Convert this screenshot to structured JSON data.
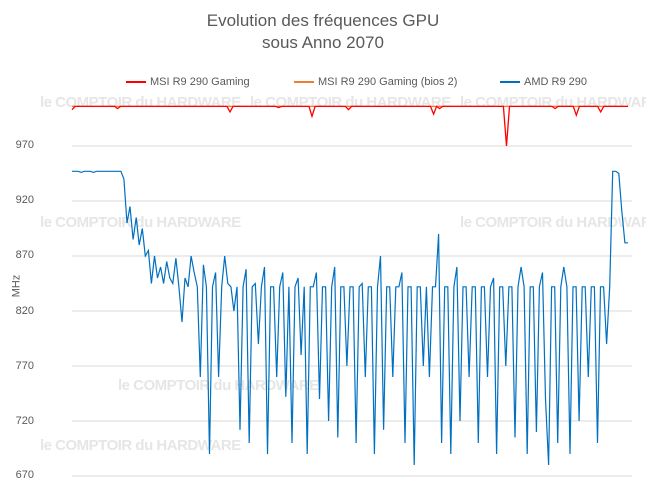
{
  "chart_data": {
    "type": "line",
    "title": "Evolution des fréquences GPU",
    "subtitle": "sous Anno 2070",
    "xlabel": "",
    "ylabel": "MHz",
    "ylim": [
      670,
      1020
    ],
    "yticks": [
      "970",
      "920",
      "870",
      "820",
      "770",
      "720",
      "670"
    ],
    "grid": true,
    "legend_position": "top",
    "watermark": "le COMPTOIR du HARDWARE",
    "series": [
      {
        "name": "MSI R9 290 Gaming",
        "color": "#ff0000",
        "values": [
          1003,
          1006,
          1006,
          1006,
          1006,
          1006,
          1006,
          1006,
          1006,
          1006,
          1006,
          1006,
          1006,
          1006,
          1006,
          1004,
          1006,
          1006,
          1006,
          1006,
          1006,
          1006,
          1006,
          1006,
          1006,
          1006,
          1006,
          1006,
          1006,
          1006,
          1006,
          1006,
          1006,
          1006,
          1006,
          1006,
          1006,
          1006,
          1006,
          1006,
          1006,
          1006,
          1006,
          1006,
          1006,
          1006,
          1006,
          1006,
          1006,
          1006,
          1006,
          1006,
          1001,
          1006,
          1006,
          1006,
          1006,
          1006,
          1006,
          1006,
          1006,
          1006,
          1006,
          1006,
          1006,
          1006,
          1006,
          1006,
          1005,
          1006,
          1006,
          1006,
          1006,
          1006,
          1006,
          1006,
          1006,
          1006,
          1006,
          997,
          1006,
          1006,
          1006,
          1006,
          1006,
          1006,
          1006,
          1006,
          1006,
          1006,
          1006,
          1003,
          1006,
          1006,
          1006,
          1006,
          1006,
          1006,
          1006,
          1006,
          1006,
          1006,
          1006,
          1006,
          1006,
          1006,
          1006,
          1006,
          1006,
          1006,
          1006,
          1006,
          1006,
          1006,
          1006,
          1006,
          1006,
          1006,
          1006,
          999,
          1006,
          1004,
          1006,
          1006,
          1006,
          1006,
          1006,
          1006,
          1006,
          1006,
          1006,
          1006,
          1006,
          1006,
          1006,
          1006,
          1006,
          1006,
          1006,
          1006,
          1006,
          1006,
          1006,
          970,
          1006,
          1006,
          1006,
          1006,
          1006,
          1006,
          1006,
          1006,
          1006,
          1006,
          1006,
          1006,
          1006,
          1006,
          1006,
          1004,
          1006,
          1006,
          1006,
          1006,
          1006,
          1006,
          998,
          1006,
          1006,
          1006,
          1006,
          1006,
          1006,
          1006,
          1001,
          1006,
          1006,
          1006,
          1006,
          1006,
          1006,
          1006,
          1006,
          1006
        ]
      },
      {
        "name": "MSI R9 290 Gaming (bios 2)",
        "color": "#ed7d31",
        "values": [
          1006,
          1006
        ]
      },
      {
        "name": "AMD R9 290",
        "color": "#0070c0",
        "values": [
          947,
          947,
          947,
          946,
          947,
          947,
          947,
          946,
          947,
          947,
          947,
          947,
          947,
          947,
          947,
          947,
          947,
          940,
          900,
          915,
          885,
          905,
          880,
          895,
          870,
          875,
          845,
          870,
          850,
          860,
          845,
          865,
          850,
          845,
          868,
          842,
          810,
          850,
          842,
          870,
          855,
          842,
          760,
          862,
          842,
          690,
          842,
          855,
          760,
          842,
          870,
          845,
          842,
          820,
          842,
          712,
          842,
          858,
          700,
          842,
          845,
          790,
          842,
          860,
          690,
          842,
          842,
          760,
          842,
          855,
          742,
          842,
          700,
          842,
          850,
          780,
          842,
          690,
          842,
          842,
          855,
          740,
          842,
          842,
          720,
          842,
          860,
          705,
          842,
          842,
          770,
          842,
          842,
          700,
          842,
          845,
          760,
          842,
          842,
          690,
          842,
          870,
          712,
          842,
          842,
          760,
          842,
          842,
          855,
          700,
          842,
          842,
          680,
          842,
          842,
          770,
          842,
          760,
          842,
          842,
          890,
          700,
          842,
          842,
          690,
          842,
          860,
          720,
          842,
          842,
          760,
          842,
          842,
          700,
          842,
          842,
          760,
          842,
          850,
          690,
          842,
          842,
          770,
          842,
          842,
          705,
          842,
          860,
          842,
          690,
          842,
          842,
          710,
          842,
          855,
          740,
          680,
          842,
          842,
          700,
          842,
          860,
          842,
          690,
          842,
          842,
          720,
          842,
          842,
          760,
          842,
          842,
          700,
          842,
          842,
          790,
          842,
          947,
          947,
          945,
          910,
          882,
          882
        ]
      }
    ]
  }
}
